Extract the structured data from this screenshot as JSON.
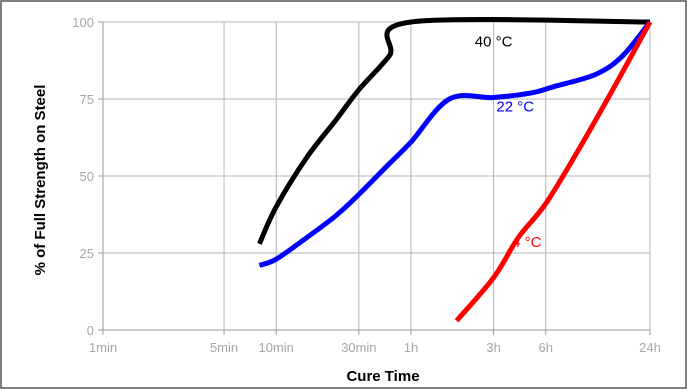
{
  "chart_data": {
    "type": "line",
    "xlabel": "Cure Time",
    "ylabel": "% of Full Strength on Steel",
    "x_scale": "log",
    "x_unit": "min",
    "x_ticks": [
      {
        "label": "1min",
        "value": 1
      },
      {
        "label": "5min",
        "value": 5
      },
      {
        "label": "10min",
        "value": 10
      },
      {
        "label": "30min",
        "value": 30
      },
      {
        "label": "1h",
        "value": 60
      },
      {
        "label": "3h",
        "value": 180
      },
      {
        "label": "6h",
        "value": 360
      },
      {
        "label": "24h",
        "value": 1440
      }
    ],
    "y_ticks": [
      0,
      25,
      50,
      75,
      100
    ],
    "xlim": [
      1,
      1440
    ],
    "ylim": [
      0,
      100
    ],
    "grid": true,
    "legend": "none",
    "series": [
      {
        "name": "40 °C",
        "color": "#000000",
        "points": [
          [
            8,
            28
          ],
          [
            10,
            40
          ],
          [
            15,
            56
          ],
          [
            22,
            68
          ],
          [
            30,
            78
          ],
          [
            45,
            89
          ],
          [
            60,
            100
          ],
          [
            1440,
            100
          ]
        ]
      },
      {
        "name": "22 °C",
        "color": "#0000ff",
        "points": [
          [
            8,
            21
          ],
          [
            10,
            23
          ],
          [
            15,
            30
          ],
          [
            22,
            37
          ],
          [
            30,
            44
          ],
          [
            45,
            54
          ],
          [
            60,
            61
          ],
          [
            100,
            75
          ],
          [
            180,
            75.5
          ],
          [
            300,
            77
          ],
          [
            400,
            79
          ],
          [
            700,
            83
          ],
          [
            1000,
            89
          ],
          [
            1440,
            100
          ]
        ]
      },
      {
        "name": "4 °C",
        "color": "#ff0000",
        "points": [
          [
            110,
            3
          ],
          [
            180,
            17
          ],
          [
            250,
            30
          ],
          [
            360,
            41
          ],
          [
            550,
            58
          ],
          [
            800,
            74
          ],
          [
            1100,
            88
          ],
          [
            1440,
            100
          ]
        ]
      }
    ]
  }
}
